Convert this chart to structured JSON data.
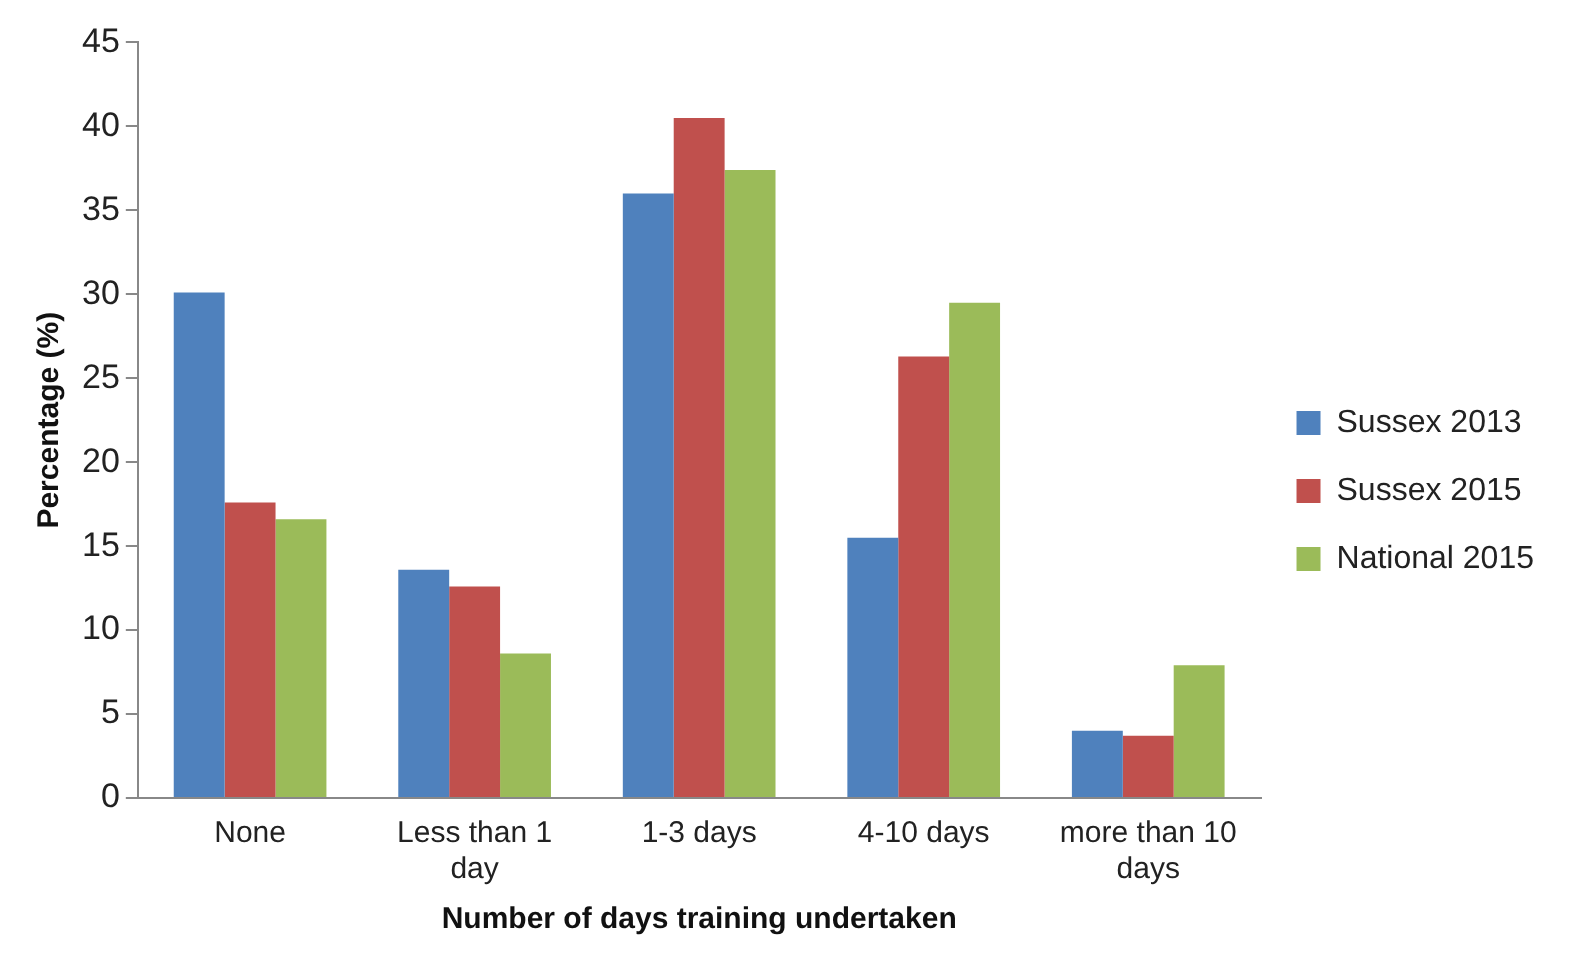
{
  "chart_data": {
    "type": "bar",
    "xlabel": "Number of days training undertaken",
    "ylabel": "Percentage (%)",
    "categories": [
      "None",
      "Less than 1 day",
      "1-3 days",
      "4-10 days",
      "more than 10 days"
    ],
    "series": [
      {
        "name": "Sussex 2013",
        "color": "#4f81bd",
        "values": [
          30.1,
          13.6,
          36,
          15.5,
          4.0
        ]
      },
      {
        "name": "Sussex 2015",
        "color": "#c0504d",
        "values": [
          17.6,
          12.6,
          40.5,
          26.3,
          3.7
        ]
      },
      {
        "name": "National 2015",
        "color": "#9bbb59",
        "values": [
          16.6,
          8.6,
          37.4,
          29.5,
          7.9
        ]
      }
    ],
    "ylim": [
      0,
      45
    ],
    "yticks": [
      0,
      5,
      10,
      15,
      20,
      25,
      30,
      35,
      40,
      45
    ],
    "grid": false,
    "legend": "right"
  }
}
